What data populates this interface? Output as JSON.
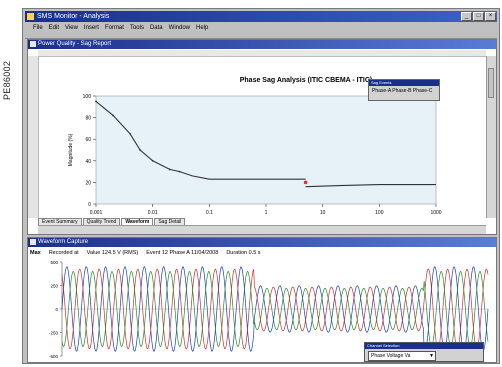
{
  "side_label": "PE86002",
  "window": {
    "title": "SMS Monitor - Analysis",
    "menu": [
      "File",
      "Edit",
      "View",
      "Insert",
      "Format",
      "Tools",
      "Data",
      "Window",
      "Help"
    ],
    "buttons": {
      "minimize": "_",
      "maximize": "□",
      "close": "×"
    }
  },
  "top_window": {
    "title": "Power Quality - Sag Report",
    "tabs": [
      "Event Summary",
      "Quality Trend",
      "Waveform",
      "Sag Detail"
    ],
    "active_tab": 2,
    "legend": {
      "title": "Sag Events",
      "text": "Phase-A   Phase-B   Phase-C"
    }
  },
  "chart_data": {
    "type": "line",
    "title": "Phase Sag Analysis (ITIC CBEMA - ITIC)",
    "xlabel": "",
    "ylabel": "Magnitude (%)",
    "x_ticks": [
      "0.001",
      "0.01",
      "0.1",
      "1",
      "10",
      "100",
      "1000"
    ],
    "y_ticks": [
      "100",
      "80",
      "60",
      "40",
      "20",
      "0"
    ],
    "ylim": [
      0,
      100
    ],
    "series": [
      {
        "name": "",
        "color": "#333333",
        "points": [
          [
            0.001,
            95
          ],
          [
            0.002,
            82
          ],
          [
            0.004,
            65
          ],
          [
            0.006,
            50
          ],
          [
            0.01,
            40
          ],
          [
            0.02,
            32
          ],
          [
            0.03,
            30
          ],
          [
            0.05,
            26
          ],
          [
            0.1,
            23
          ],
          [
            1,
            23
          ],
          [
            5,
            23
          ]
        ]
      },
      {
        "name": "",
        "color": "#333333",
        "points": [
          [
            5,
            16
          ],
          [
            20,
            17
          ],
          [
            100,
            18
          ],
          [
            1000,
            18
          ]
        ]
      }
    ],
    "markers": [
      {
        "x": 5,
        "y": 20,
        "color": "#e03020"
      }
    ]
  },
  "bottom_window": {
    "title": "Waveform Capture",
    "info": {
      "label": "Max",
      "field1": "Recorded at",
      "field2": "Value 124.5 V (RMS)",
      "field3": "Event 12 Phase A  11/04/2008",
      "field4": "Duration 0.5 s"
    },
    "y_ticks": [
      "500",
      "250",
      "0",
      "-250",
      "-500"
    ],
    "dropdown": {
      "title": "Channel Selection",
      "value": "Phase Voltage Va"
    }
  },
  "wave_data": {
    "type": "line",
    "x": [
      0,
      1
    ],
    "series": [
      {
        "name": "",
        "color": "#1a3fbf",
        "amplitude": 0.9,
        "phase": 0.0
      },
      {
        "name": "",
        "color": "#d03030",
        "amplitude": 0.85,
        "phase": 2.094
      },
      {
        "name": "",
        "color": "#2a8a2a",
        "amplitude": 0.8,
        "phase": 4.189
      }
    ],
    "cycles": 22,
    "sag_region": [
      0.45,
      0.85
    ],
    "sag_factor": 0.55
  },
  "colors": {
    "title_bar": "#1a2f8c",
    "plot_bg": "#e6f2f8"
  }
}
